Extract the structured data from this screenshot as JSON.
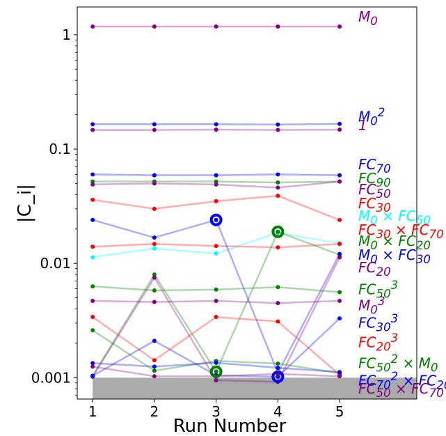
{
  "chart_data": {
    "type": "line",
    "xlabel": "Run Number",
    "ylabel": "|C_i|",
    "x_ticks": [
      "1",
      "2",
      "3",
      "4",
      "5"
    ],
    "y_scale": "log",
    "y_ticks": [
      {
        "value": 0.001,
        "label": "0.001"
      },
      {
        "value": 0.01,
        "label": "0.01"
      },
      {
        "value": 0.1,
        "label": "0.1"
      },
      {
        "value": 1,
        "label": "1"
      }
    ],
    "xlim": [
      0.75,
      6.25
    ],
    "ylim": [
      0.00065,
      1.75
    ],
    "shaded_region": {
      "ymax": 0.001,
      "color": "#aaaaaa"
    },
    "x": [
      1,
      2,
      3,
      4,
      5
    ],
    "series": [
      {
        "label_html": "M<sub>0</sub>",
        "color": "#800080",
        "values": [
          1.18,
          1.18,
          1.18,
          1.18,
          1.18
        ]
      },
      {
        "label_html": "M<sub>0</sub><sup>2</sup>",
        "color": "#0000ff",
        "values": [
          0.165,
          0.165,
          0.165,
          0.164,
          0.166
        ]
      },
      {
        "label_html": "1",
        "color": "#800080",
        "values": [
          0.147,
          0.147,
          0.148,
          0.147,
          0.148
        ]
      },
      {
        "label_html": "FC<sub>70</sub>",
        "color": "#0000ff",
        "values": [
          0.06,
          0.059,
          0.059,
          0.06,
          0.059
        ]
      },
      {
        "label_html": "FC<sub>90</sub>",
        "color": "#008000",
        "values": [
          0.052,
          0.052,
          0.052,
          0.051,
          0.052
        ]
      },
      {
        "label_html": "FC<sub>50</sub>",
        "color": "#800080",
        "values": [
          0.049,
          0.05,
          0.049,
          0.046,
          0.052
        ]
      },
      {
        "label_html": "FC<sub>30</sub>",
        "color": "#ff0000",
        "values": [
          0.036,
          0.03,
          0.035,
          0.039,
          0.024
        ]
      },
      {
        "label_html": "M<sub>0</sub> × FC<sub>50</sub>",
        "color": "#00ffff",
        "values": [
          0.0113,
          0.0135,
          0.0122,
          0.0185,
          0.015
        ]
      },
      {
        "label_html": "FC<sub>30</sub> × FC<sub>70</sub>",
        "color": "#ff0000",
        "values": [
          0.014,
          0.0148,
          0.0142,
          0.0138,
          0.0148
        ]
      },
      {
        "label_html": "M<sub>0</sub> × FC<sub>20</sub>",
        "color": "#008000",
        "values": [
          0.00104,
          0.008,
          0.00113,
          0.0189,
          0.0119
        ]
      },
      {
        "label_html": "M<sub>0</sub> × FC<sub>30</sub>",
        "color": "#0000ff",
        "values": [
          0.024,
          0.0168,
          0.024,
          0.0011,
          0.0121
        ]
      },
      {
        "label_html": "FC<sub>20</sub>",
        "color": "#800080",
        "values": [
          0.00102,
          0.0075,
          0.00095,
          0.00092,
          0.0113
        ]
      },
      {
        "label_html": "FC<sub>50</sub><sup>3</sup>",
        "color": "#008000",
        "values": [
          0.0063,
          0.0058,
          0.0059,
          0.0062,
          0.0056
        ]
      },
      {
        "label_html": "M<sub>0</sub><sup>3</sup>",
        "color": "#800080",
        "values": [
          0.0047,
          0.0046,
          0.0047,
          0.0045,
          0.0047
        ]
      },
      {
        "label_html": "FC<sub>30</sub><sup>3</sup>",
        "color": "#0000ff",
        "values": [
          0.00104,
          0.0021,
          0.00105,
          0.00102,
          0.0033
        ]
      },
      {
        "label_html": "FC<sub>20</sub><sup>3</sup>",
        "color": "#ff0000",
        "values": [
          0.0034,
          0.00142,
          0.0034,
          0.0031,
          0.00106
        ]
      },
      {
        "label_html": "FC<sub>50</sub><sup>2</sup> × M<sub>0</sub>",
        "color": "#008000",
        "values": [
          0.0026,
          0.00115,
          0.0014,
          0.00133,
          0.0011
        ]
      },
      {
        "label_html": "FC<sub>70</sub><sup>2</sup> × FC<sub>20</sub>",
        "color": "#0000ff",
        "values": [
          0.00134,
          0.00125,
          0.00135,
          0.00122,
          0.00112
        ]
      },
      {
        "label_html": "FC<sub>50</sub> × FC<sub>70</sub>",
        "color": "#800080",
        "values": [
          0.00125,
          0.00103,
          0.00103,
          0.00108,
          0.00103
        ]
      }
    ],
    "highlighted_points": [
      {
        "x": 3,
        "y": 0.024,
        "color": "#0000ff"
      },
      {
        "x": 4,
        "y": 0.0189,
        "color": "#008000"
      },
      {
        "x": 3,
        "y": 0.00113,
        "color": "#008000"
      },
      {
        "x": 4,
        "y": 0.00102,
        "color": "#0000ff"
      }
    ]
  }
}
